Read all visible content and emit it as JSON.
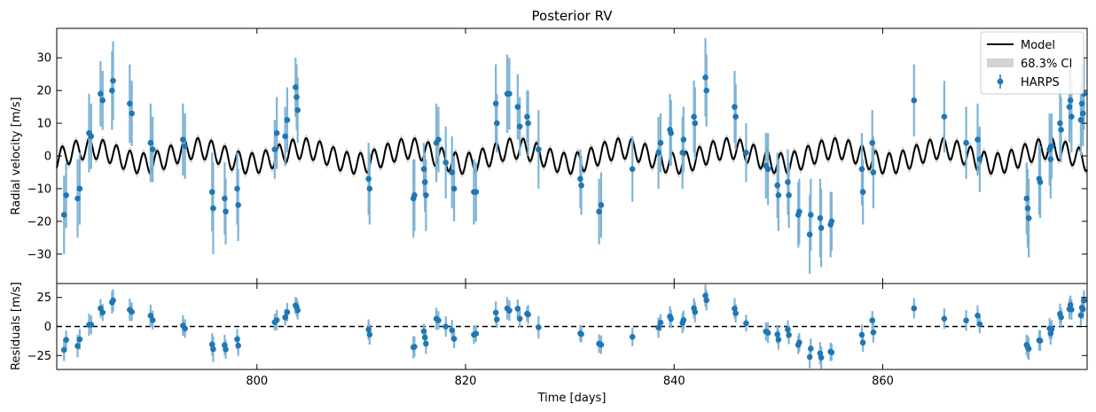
{
  "chart_data": [
    {
      "type": "scatter",
      "title": "Posterior RV",
      "xlabel": "",
      "ylabel": "Radial velocity [m/s]",
      "xlim": [
        780.8,
        879.6
      ],
      "ylim": [
        -39,
        39
      ],
      "yticks": [
        -30,
        -20,
        -10,
        0,
        10,
        20,
        30
      ],
      "xticks": [
        800,
        820,
        840,
        860
      ],
      "legend_position": "top-right",
      "legend": [
        "Model",
        "68.3% CI",
        "HARPS"
      ],
      "colors": {
        "model": "#000000",
        "ci": "#d3d3d3",
        "data": "#1f77b4",
        "errorbar": "#7fb3d5"
      },
      "model": {
        "name": "Model",
        "components": [
          {
            "period_days": 10.2,
            "amplitude": 2.3,
            "phase_day": 781.5
          },
          {
            "period_days": 1.3,
            "amplitude": 3.2,
            "phase_day": 781.0
          }
        ],
        "ci_halfwidth": 1.2
      },
      "series": [
        {
          "name": "HARPS",
          "points": [
            {
              "x": 781.5,
              "y": -18,
              "err": 12
            },
            {
              "x": 781.7,
              "y": -12,
              "err": 10
            },
            {
              "x": 782.8,
              "y": -13,
              "err": 12
            },
            {
              "x": 783.0,
              "y": -10,
              "err": 11
            },
            {
              "x": 783.9,
              "y": 7,
              "err": 12
            },
            {
              "x": 784.1,
              "y": 6,
              "err": 10
            },
            {
              "x": 785.0,
              "y": 19,
              "err": 10
            },
            {
              "x": 785.2,
              "y": 17,
              "err": 9
            },
            {
              "x": 786.1,
              "y": 20,
              "err": 12
            },
            {
              "x": 786.2,
              "y": 23,
              "err": 12
            },
            {
              "x": 787.8,
              "y": 16,
              "err": 12
            },
            {
              "x": 788.0,
              "y": 13,
              "err": 10
            },
            {
              "x": 789.8,
              "y": 4,
              "err": 12
            },
            {
              "x": 790.0,
              "y": 2,
              "err": 10
            },
            {
              "x": 792.9,
              "y": 5,
              "err": 11
            },
            {
              "x": 793.1,
              "y": 3,
              "err": 10
            },
            {
              "x": 795.7,
              "y": -11,
              "err": 12
            },
            {
              "x": 795.8,
              "y": -16,
              "err": 14
            },
            {
              "x": 796.9,
              "y": -13,
              "err": 11
            },
            {
              "x": 797.0,
              "y": -17,
              "err": 10
            },
            {
              "x": 798.1,
              "y": -10,
              "err": 11
            },
            {
              "x": 798.2,
              "y": -15,
              "err": 11
            },
            {
              "x": 801.7,
              "y": 2,
              "err": 9
            },
            {
              "x": 801.9,
              "y": 7,
              "err": 11
            },
            {
              "x": 802.7,
              "y": 6,
              "err": 9
            },
            {
              "x": 802.9,
              "y": 11,
              "err": 10
            },
            {
              "x": 803.7,
              "y": 21,
              "err": 9
            },
            {
              "x": 803.8,
              "y": 18,
              "err": 10
            },
            {
              "x": 803.9,
              "y": 14,
              "err": 10
            },
            {
              "x": 810.7,
              "y": -7,
              "err": 11
            },
            {
              "x": 810.8,
              "y": -10,
              "err": 11
            },
            {
              "x": 815.0,
              "y": -13,
              "err": 12
            },
            {
              "x": 815.1,
              "y": -12,
              "err": 11
            },
            {
              "x": 816.0,
              "y": -4,
              "err": 8
            },
            {
              "x": 816.1,
              "y": -8,
              "err": 9
            },
            {
              "x": 816.2,
              "y": -12,
              "err": 11
            },
            {
              "x": 817.2,
              "y": 4,
              "err": 12
            },
            {
              "x": 817.4,
              "y": 5,
              "err": 10
            },
            {
              "x": 818.1,
              "y": -2,
              "err": 11
            },
            {
              "x": 818.7,
              "y": -5,
              "err": 11
            },
            {
              "x": 818.9,
              "y": -10,
              "err": 10
            },
            {
              "x": 820.8,
              "y": -11,
              "err": 10
            },
            {
              "x": 821.0,
              "y": -11,
              "err": 9
            },
            {
              "x": 822.9,
              "y": 16,
              "err": 12
            },
            {
              "x": 823.0,
              "y": 10,
              "err": 9
            },
            {
              "x": 824.0,
              "y": 19,
              "err": 12
            },
            {
              "x": 824.2,
              "y": 19,
              "err": 11
            },
            {
              "x": 825.0,
              "y": 15,
              "err": 10
            },
            {
              "x": 825.2,
              "y": 9,
              "err": 9
            },
            {
              "x": 825.9,
              "y": 12,
              "err": 8
            },
            {
              "x": 826.0,
              "y": 10,
              "err": 10
            },
            {
              "x": 827.0,
              "y": 2,
              "err": 12
            },
            {
              "x": 831.0,
              "y": -7,
              "err": 9
            },
            {
              "x": 831.1,
              "y": -9,
              "err": 9
            },
            {
              "x": 832.8,
              "y": -17,
              "err": 10
            },
            {
              "x": 833.0,
              "y": -15,
              "err": 10
            },
            {
              "x": 836.0,
              "y": -4,
              "err": 10
            },
            {
              "x": 838.5,
              "y": 1,
              "err": 11
            },
            {
              "x": 838.7,
              "y": 4,
              "err": 9
            },
            {
              "x": 839.6,
              "y": 8,
              "err": 11
            },
            {
              "x": 839.7,
              "y": 7,
              "err": 10
            },
            {
              "x": 840.8,
              "y": 1,
              "err": 11
            },
            {
              "x": 840.9,
              "y": 5,
              "err": 10
            },
            {
              "x": 841.9,
              "y": 12,
              "err": 11
            },
            {
              "x": 842.0,
              "y": 10,
              "err": 11
            },
            {
              "x": 843.0,
              "y": 24,
              "err": 12
            },
            {
              "x": 843.1,
              "y": 20,
              "err": 11
            },
            {
              "x": 845.8,
              "y": 15,
              "err": 11
            },
            {
              "x": 845.9,
              "y": 12,
              "err": 10
            },
            {
              "x": 846.9,
              "y": 1,
              "err": 9
            },
            {
              "x": 848.8,
              "y": -3,
              "err": 10
            },
            {
              "x": 849.0,
              "y": -4,
              "err": 11
            },
            {
              "x": 849.9,
              "y": -9,
              "err": 10
            },
            {
              "x": 850.0,
              "y": -12,
              "err": 11
            },
            {
              "x": 850.9,
              "y": -8,
              "err": 10
            },
            {
              "x": 851.0,
              "y": -12,
              "err": 10
            },
            {
              "x": 851.9,
              "y": -18,
              "err": 10
            },
            {
              "x": 852.0,
              "y": -17,
              "err": 10
            },
            {
              "x": 853.0,
              "y": -24,
              "err": 12
            },
            {
              "x": 853.1,
              "y": -18,
              "err": 11
            },
            {
              "x": 854.0,
              "y": -19,
              "err": 12
            },
            {
              "x": 854.1,
              "y": -22,
              "err": 12
            },
            {
              "x": 855.0,
              "y": -21,
              "err": 10
            },
            {
              "x": 855.1,
              "y": -20,
              "err": 9
            },
            {
              "x": 858.0,
              "y": -4,
              "err": 11
            },
            {
              "x": 858.1,
              "y": -11,
              "err": 10
            },
            {
              "x": 859.0,
              "y": 4,
              "err": 10
            },
            {
              "x": 859.1,
              "y": -5,
              "err": 11
            },
            {
              "x": 863.0,
              "y": 17,
              "err": 11
            },
            {
              "x": 865.9,
              "y": 12,
              "err": 11
            },
            {
              "x": 868.0,
              "y": 4,
              "err": 11
            },
            {
              "x": 869.1,
              "y": 5,
              "err": 11
            },
            {
              "x": 869.3,
              "y": -1,
              "err": 10
            },
            {
              "x": 873.8,
              "y": -13,
              "err": 11
            },
            {
              "x": 873.9,
              "y": -16,
              "err": 12
            },
            {
              "x": 874.0,
              "y": -19,
              "err": 12
            },
            {
              "x": 875.0,
              "y": -7,
              "err": 11
            },
            {
              "x": 875.1,
              "y": -8,
              "err": 11
            },
            {
              "x": 876.0,
              "y": 2,
              "err": 11
            },
            {
              "x": 876.1,
              "y": -1,
              "err": 12
            },
            {
              "x": 876.2,
              "y": 3,
              "err": 10
            },
            {
              "x": 877.0,
              "y": 10,
              "err": 11
            },
            {
              "x": 877.1,
              "y": 8,
              "err": 10
            },
            {
              "x": 877.9,
              "y": 15,
              "err": 11
            },
            {
              "x": 878.0,
              "y": 17,
              "err": 10
            },
            {
              "x": 878.1,
              "y": 12,
              "err": 11
            },
            {
              "x": 879.0,
              "y": 11,
              "err": 11
            },
            {
              "x": 879.1,
              "y": 16,
              "err": 12
            },
            {
              "x": 879.2,
              "y": 13,
              "err": 10
            },
            {
              "x": 879.3,
              "y": 19,
              "err": 11
            }
          ]
        }
      ]
    },
    {
      "type": "scatter",
      "title": "",
      "xlabel": "Time [days]",
      "ylabel": "Residuals [m/s]",
      "xlim": [
        780.8,
        879.6
      ],
      "ylim": [
        -37,
        37
      ],
      "yticks": [
        -25,
        0,
        25
      ],
      "xticks": [
        800,
        820,
        840,
        860
      ],
      "reference_line": {
        "y": 0,
        "style": "dashed"
      },
      "series": [
        {
          "name": "HARPS residuals",
          "derived_from": "y_minus_model"
        }
      ]
    }
  ]
}
